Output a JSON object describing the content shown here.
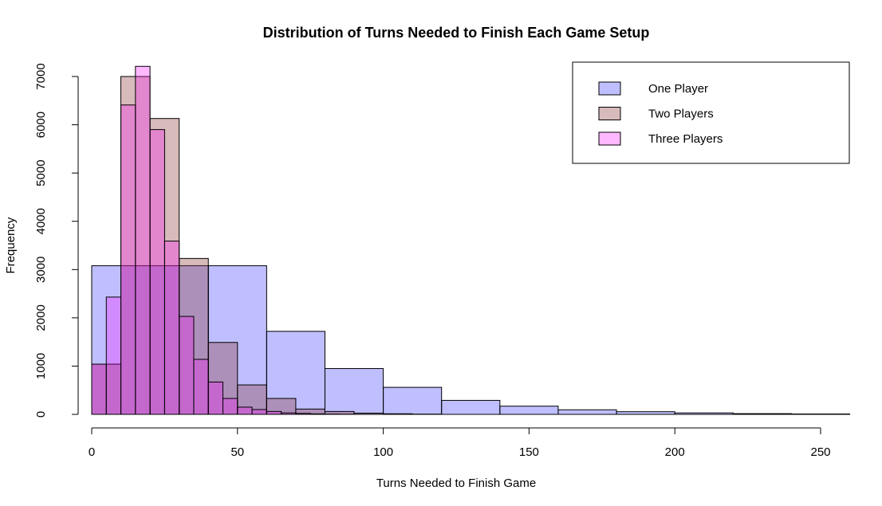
{
  "chart_data": {
    "type": "histogram",
    "title": "Distribution of Turns Needed to Finish Each Game Setup",
    "xlabel": "Turns Needed to Finish Game",
    "ylabel": "Frequency",
    "xlim": [
      0,
      260
    ],
    "ylim": [
      0,
      7200
    ],
    "x_ticks": [
      0,
      50,
      100,
      150,
      200,
      250
    ],
    "y_ticks": [
      0,
      1000,
      2000,
      3000,
      4000,
      5000,
      6000,
      7000
    ],
    "legend_position": "top-right",
    "series": [
      {
        "name": "One Player",
        "color": "#0000FF",
        "opacity": 0.25,
        "bin_edges": [
          0,
          20,
          40,
          60,
          80,
          100,
          120,
          140,
          160,
          180,
          200,
          220,
          240,
          260
        ],
        "values": [
          3080,
          3080,
          3080,
          1720,
          950,
          560,
          290,
          170,
          95,
          55,
          30,
          15,
          8
        ]
      },
      {
        "name": "Two Players",
        "color": "#8B3A3A",
        "opacity": 0.35,
        "bin_edges": [
          0,
          10,
          20,
          30,
          40,
          50,
          60,
          70,
          80,
          90,
          100,
          110,
          120
        ],
        "values": [
          1040,
          7000,
          6130,
          3230,
          1490,
          610,
          330,
          110,
          60,
          25,
          12,
          5
        ]
      },
      {
        "name": "Three Players",
        "color": "#FF00FF",
        "opacity": 0.28,
        "bin_edges": [
          0,
          5,
          10,
          15,
          20,
          25,
          30,
          35,
          40,
          45,
          50,
          55,
          60,
          65,
          70,
          75,
          80,
          85,
          90
        ],
        "values": [
          1040,
          2430,
          6410,
          7210,
          5900,
          3590,
          2030,
          1140,
          670,
          330,
          150,
          100,
          60,
          30,
          20,
          10,
          5,
          3
        ]
      }
    ]
  }
}
